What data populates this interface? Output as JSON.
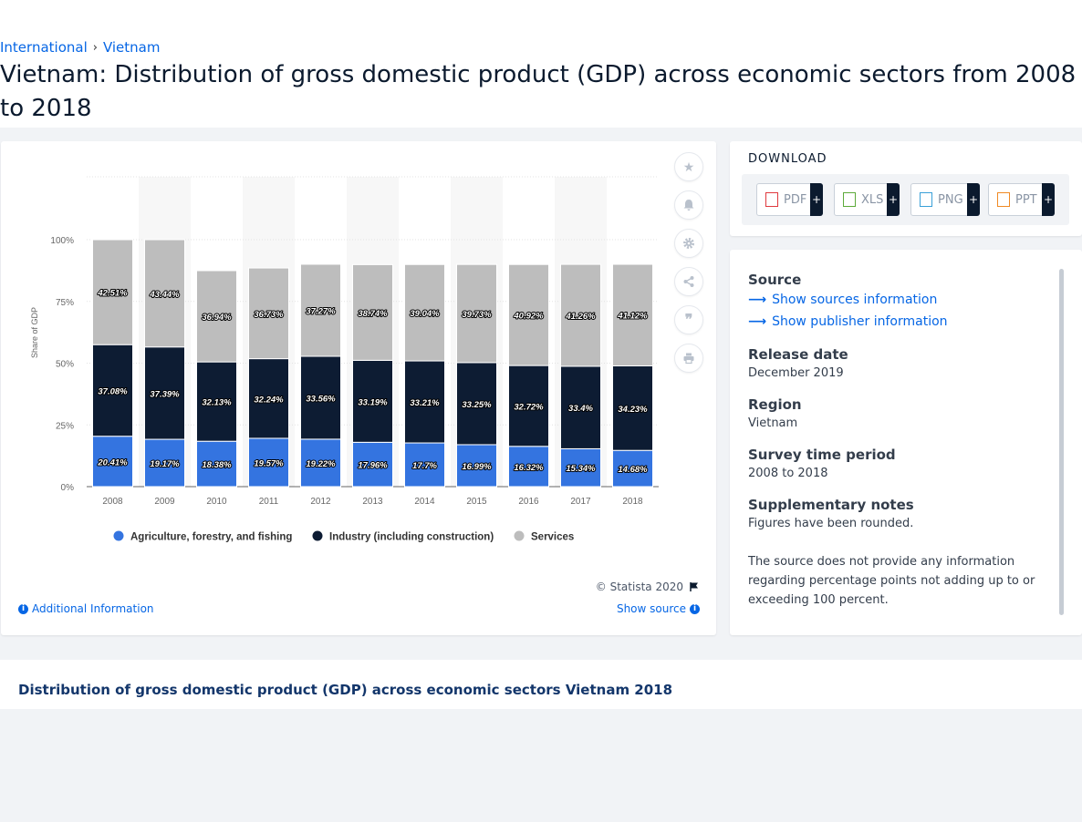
{
  "breadcrumb": [
    {
      "label": "International"
    },
    {
      "label": "Vietnam"
    }
  ],
  "page_title": "Vietnam: Distribution of gross domestic product (GDP) across economic sectors from 2008 to 2018",
  "chart_data": {
    "type": "bar",
    "stacked": true,
    "title": "",
    "xlabel": "",
    "ylabel": "Share of GDP",
    "ylim": [
      0,
      100
    ],
    "yticks": [
      "0%",
      "25%",
      "50%",
      "75%",
      "100%"
    ],
    "categories": [
      "2008",
      "2009",
      "2010",
      "2011",
      "2012",
      "2013",
      "2014",
      "2015",
      "2016",
      "2017",
      "2018"
    ],
    "series": [
      {
        "name": "Agriculture, forestry, and fishing",
        "color": "#3474e0",
        "values": [
          20.41,
          19.17,
          18.38,
          19.57,
          19.22,
          17.96,
          17.7,
          16.99,
          16.32,
          15.34,
          14.68
        ],
        "labels": [
          "20.41%",
          "19.17%",
          "18.38%",
          "19.57%",
          "19.22%",
          "17.96%",
          "17.7%",
          "16.99%",
          "16.32%",
          "15.34%",
          "14.68%"
        ]
      },
      {
        "name": "Industry (including construction)",
        "color": "#0d1c33",
        "values": [
          37.08,
          37.39,
          32.13,
          32.24,
          33.56,
          33.19,
          33.21,
          33.25,
          32.72,
          33.4,
          34.23
        ],
        "labels": [
          "37.08%",
          "37.39%",
          "32.13%",
          "32.24%",
          "33.56%",
          "33.19%",
          "33.21%",
          "33.25%",
          "32.72%",
          "33.4%",
          "34.23%"
        ]
      },
      {
        "name": "Services",
        "color": "#bdbdbd",
        "values": [
          42.51,
          43.44,
          36.94,
          36.73,
          37.27,
          38.74,
          39.04,
          39.73,
          40.92,
          41.26,
          41.12
        ],
        "labels": [
          "42.51%",
          "43.44%",
          "36.94%",
          "36.73%",
          "37.27%",
          "38.74%",
          "39.04%",
          "39.73%",
          "40.92%",
          "41.26%",
          "41.12%"
        ]
      }
    ],
    "grid": true,
    "legend": "bottom"
  },
  "chart_footer": {
    "copyright": "© Statista 2020",
    "additional_info": "Additional Information",
    "show_source": "Show source"
  },
  "tools": [
    "star-icon",
    "bell-icon",
    "gear-icon",
    "share-icon",
    "quote-icon",
    "print-icon"
  ],
  "download": {
    "title": "DOWNLOAD",
    "buttons": [
      {
        "label": "PDF",
        "plus": "+",
        "color": "#e0393e"
      },
      {
        "label": "XLS",
        "plus": "+",
        "color": "#5daa3a"
      },
      {
        "label": "PNG",
        "plus": "+",
        "color": "#3aa0d8"
      },
      {
        "label": "PPT",
        "plus": "+",
        "color": "#f08a24"
      }
    ]
  },
  "meta": {
    "source_heading": "Source",
    "show_sources": "Show sources information",
    "show_publisher": "Show publisher information",
    "release_heading": "Release date",
    "release_value": "December 2019",
    "region_heading": "Region",
    "region_value": "Vietnam",
    "survey_heading": "Survey time period",
    "survey_value": "2008 to 2018",
    "notes_heading": "Supplementary notes",
    "notes_1": "Figures have been rounded.",
    "notes_2": "The source does not provide any information regarding percentage points not adding up to or exceeding 100 percent."
  },
  "bottom_title": "Distribution of gross domestic product (GDP) across economic sectors Vietnam 2018"
}
